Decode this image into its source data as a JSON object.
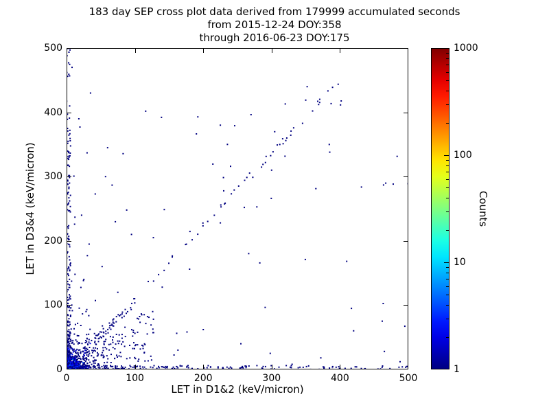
{
  "figure": {
    "background": "#ffffff",
    "axis_color": "#000000"
  },
  "chart_data": {
    "type": "scatter",
    "title": "183 day SEP cross plot data derived from 179999 accumulated seconds",
    "subtitle1": "from 2015-12-24 DOY:358",
    "subtitle2": "through 2016-06-23 DOY:175",
    "xlabel": "LET in D1&2 (keV/micron)",
    "ylabel": "LET in D3&4 (keV/micron)",
    "xlim": [
      0,
      500
    ],
    "ylim": [
      0,
      500
    ],
    "xticks": [
      0,
      100,
      200,
      300,
      400,
      500
    ],
    "yticks": [
      0,
      100,
      200,
      300,
      400,
      500
    ],
    "grid": false,
    "legend": "none",
    "colorbar": {
      "label": "Counts",
      "scale": "log",
      "min": 1,
      "max": 1000,
      "ticks": [
        1,
        10,
        100,
        1000
      ],
      "colormap": "jet"
    },
    "seed": 1337,
    "marker_px": 2,
    "clusters": [
      {
        "name": "origin-core",
        "type": "blob",
        "n": 520,
        "sx": 7,
        "sy": 6.5,
        "xmax": 90,
        "ymax": 90,
        "cmax": 40,
        "cfall": 12
      },
      {
        "name": "origin-spread",
        "type": "blob",
        "n": 300,
        "sx": 24,
        "sy": 26,
        "xmax": 180,
        "ymax": 260,
        "cmax": 3,
        "cfall": 40
      },
      {
        "name": "low-diagonal",
        "type": "diag",
        "n": 90,
        "x0": 5,
        "x1": 100,
        "slope": 1.05,
        "jitter": 14,
        "cmax": 8,
        "cfall": 30
      },
      {
        "name": "low-fan",
        "type": "fan",
        "n": 130,
        "xmax": 130,
        "smin": 0.08,
        "smax": 0.8,
        "cmax": 4,
        "cfall": 30
      },
      {
        "name": "x-axis-band",
        "type": "hband",
        "n": 220,
        "xmax": 500,
        "ymax": 6,
        "pow": 2.0,
        "cmax": 6,
        "cfall": 25
      },
      {
        "name": "y-axis-band",
        "type": "vband",
        "n": 240,
        "ymax": 500,
        "xmax": 6,
        "pow": 2.4,
        "cmax": 6,
        "cfall": 25
      },
      {
        "name": "main-diagonal",
        "type": "diag",
        "n": 48,
        "x0": 110,
        "x1": 400,
        "slope": 1.12,
        "jitter": 12
      },
      {
        "name": "sparse-background",
        "type": "uniform",
        "n": 55,
        "xmax": 500,
        "ymax": 450
      }
    ],
    "extra_points": [
      [
        35,
        430
      ],
      [
        30,
        337
      ],
      [
        57,
        300
      ],
      [
        88,
        248
      ],
      [
        127,
        205
      ],
      [
        95,
        210
      ],
      [
        42,
        273
      ],
      [
        60,
        345
      ],
      [
        18,
        390
      ],
      [
        8,
        470
      ],
      [
        5,
        497
      ],
      [
        225,
        380
      ],
      [
        240,
        316
      ],
      [
        320,
        413
      ],
      [
        352,
        440
      ],
      [
        385,
        338
      ],
      [
        300,
        310
      ],
      [
        260,
        252
      ],
      [
        225,
        228
      ],
      [
        180,
        156
      ],
      [
        140,
        128
      ],
      [
        488,
        12
      ],
      [
        465,
        28
      ],
      [
        420,
        60
      ],
      [
        372,
        18
      ],
      [
        330,
        8
      ],
      [
        298,
        25
      ],
      [
        255,
        40
      ],
      [
        200,
        62
      ],
      [
        163,
        30
      ],
      [
        110,
        85
      ],
      [
        75,
        120
      ],
      [
        52,
        160
      ],
      [
        33,
        195
      ],
      [
        22,
        240
      ]
    ]
  }
}
